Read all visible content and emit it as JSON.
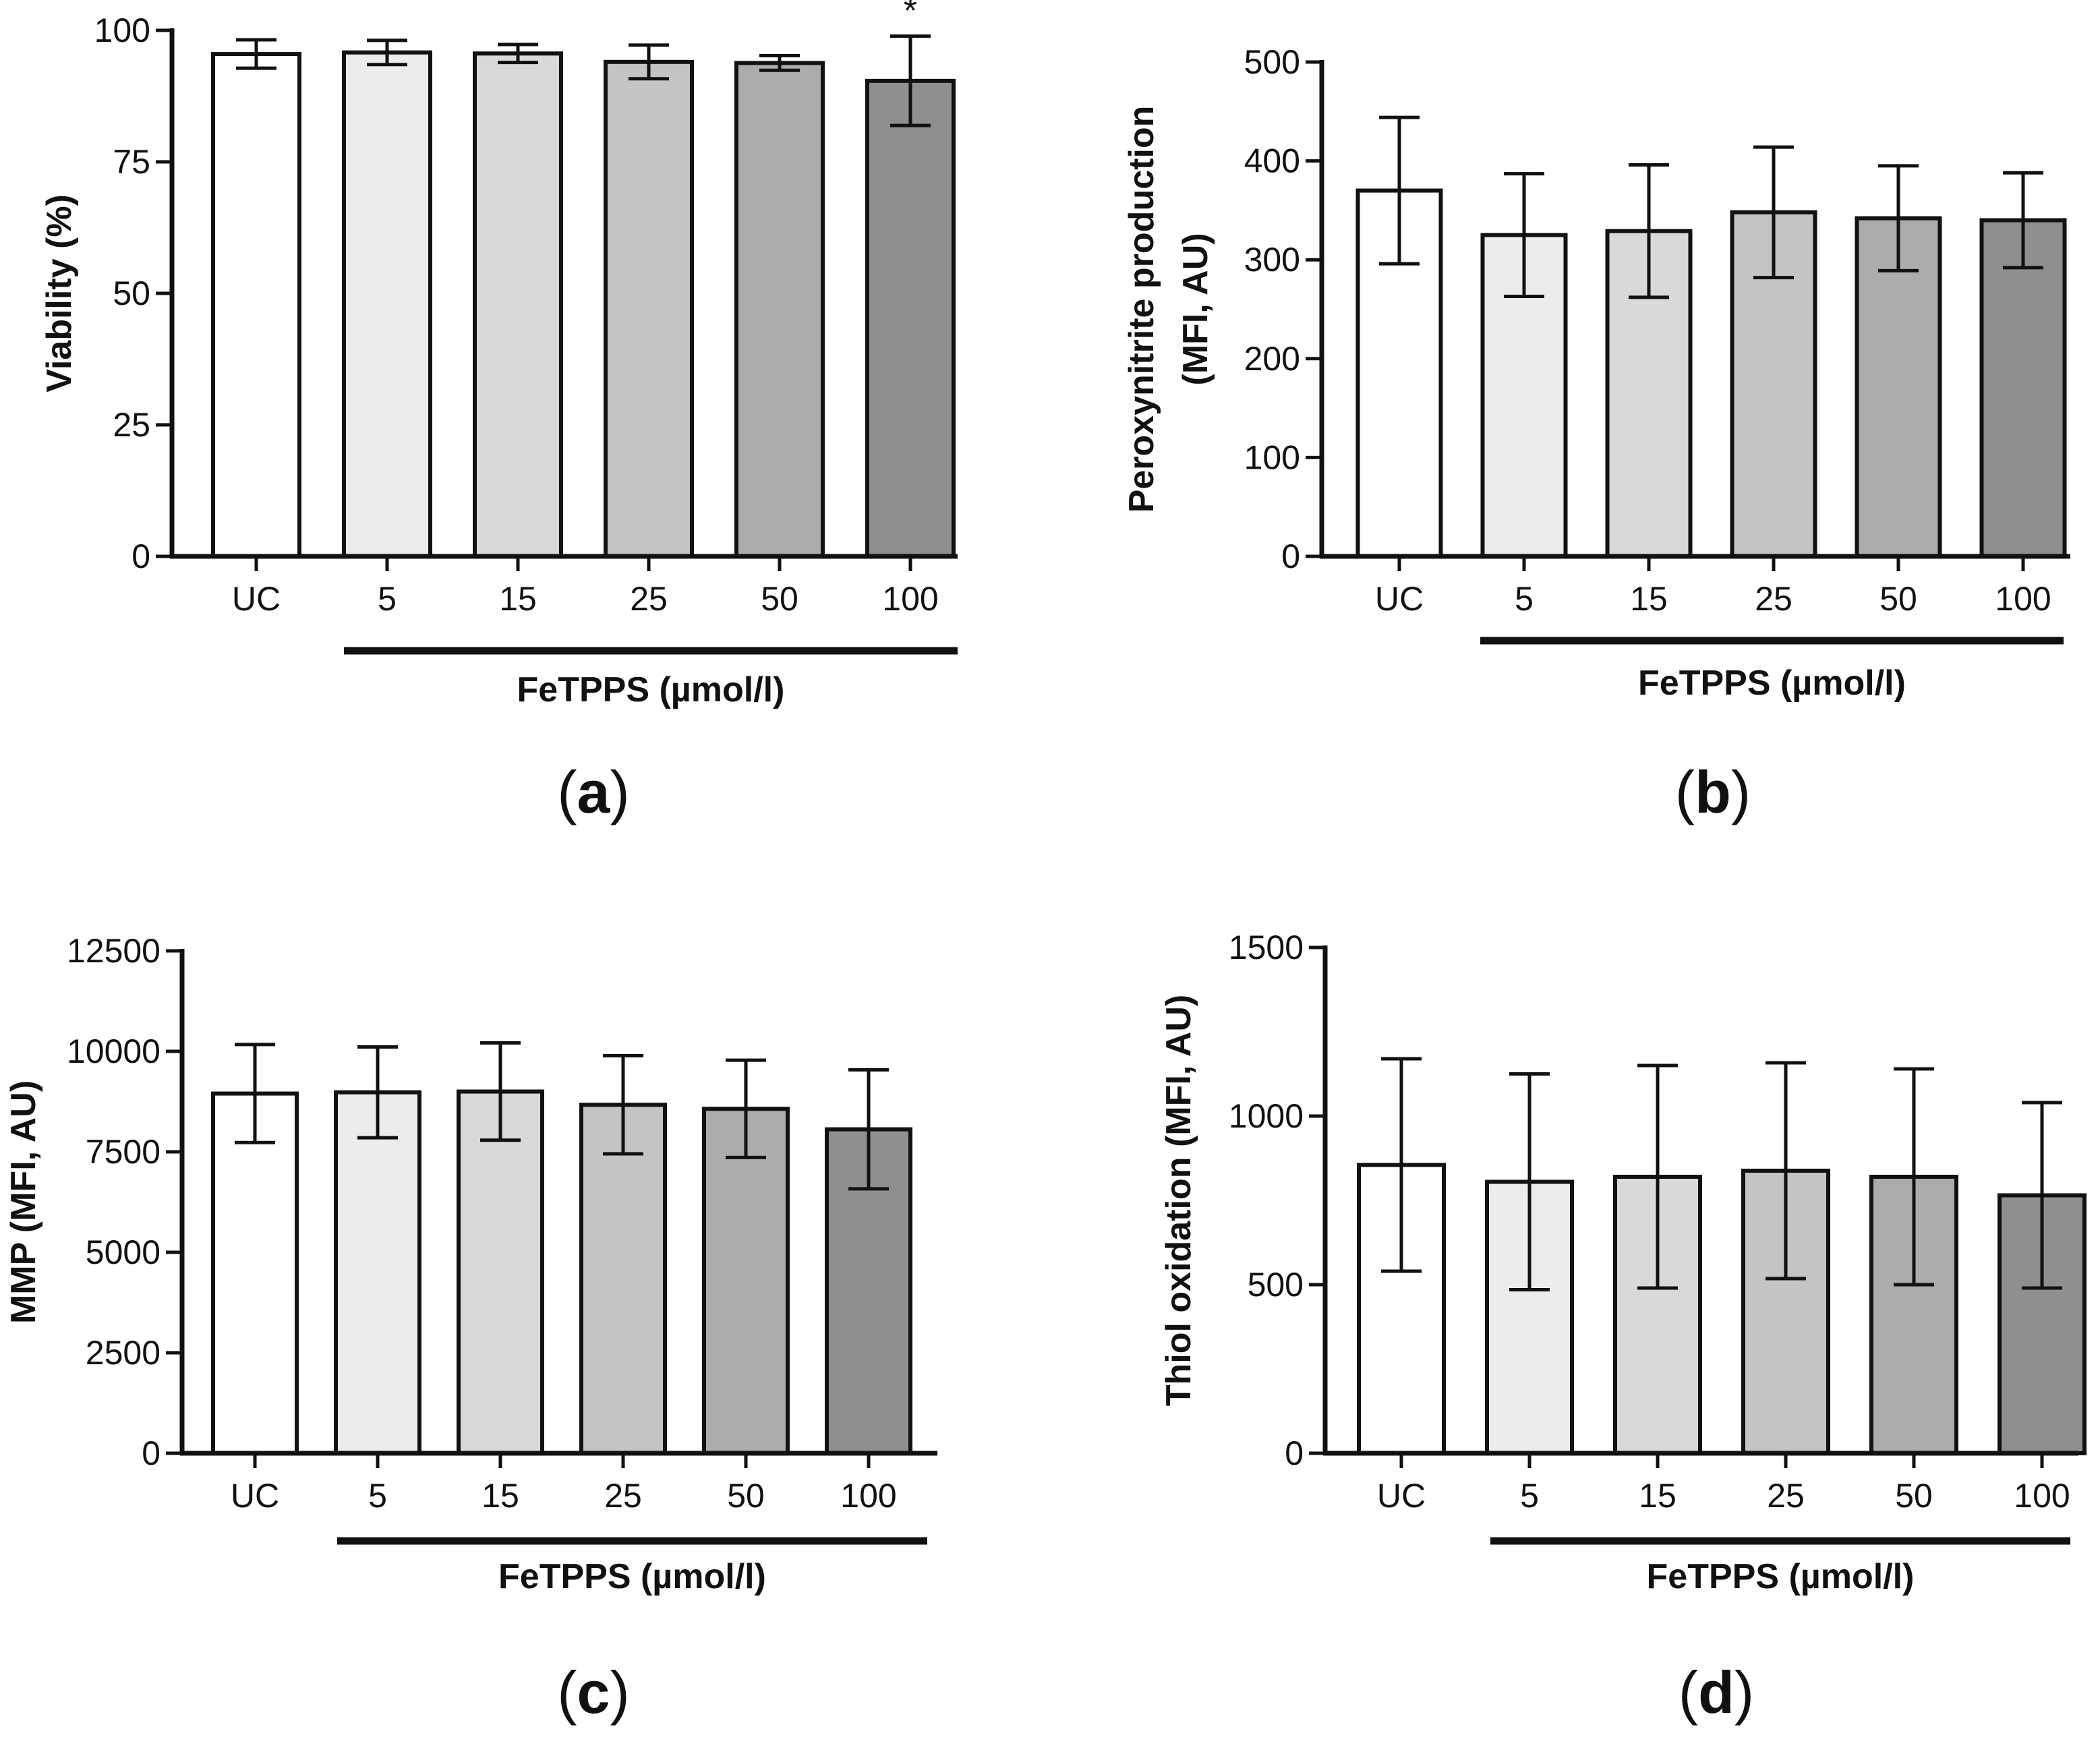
{
  "colors": {
    "bars": [
      "#ffffff",
      "#ececec",
      "#d9d9d9",
      "#c4c4c4",
      "#acacac",
      "#8f8f8f"
    ],
    "stroke": "#111111"
  },
  "chart_data": [
    {
      "panel": "a",
      "panel_label": "a",
      "type": "bar",
      "categories": [
        "UC",
        "5",
        "15",
        "25",
        "50",
        "100"
      ],
      "values": [
        95.5,
        95.8,
        95.6,
        94.0,
        93.8,
        90.4
      ],
      "errors": [
        2.7,
        2.3,
        1.7,
        3.2,
        1.4,
        8.5
      ],
      "ylabel": "Viability (%)",
      "group_label": "FeTPPS (µmol/l)",
      "ylim": [
        0,
        100
      ],
      "yticks": [
        0,
        25,
        50,
        75,
        100
      ],
      "annotations": [
        {
          "category": "100",
          "text": "*"
        }
      ]
    },
    {
      "panel": "b",
      "panel_label": "b",
      "type": "bar",
      "categories": [
        "UC",
        "5",
        "15",
        "25",
        "50",
        "100"
      ],
      "values": [
        370,
        325,
        329,
        348,
        342,
        340
      ],
      "errors": [
        74,
        62,
        67,
        66,
        53,
        48
      ],
      "ylabel": "Peroxynitrite production (MFI, AU)",
      "ylabel_lines": [
        "Peroxynitrite production",
        "(MFI, AU)"
      ],
      "group_label": "FeTPPS (µmol/l)",
      "ylim": [
        0,
        500
      ],
      "yticks": [
        0,
        100,
        200,
        300,
        400,
        500
      ],
      "annotations": []
    },
    {
      "panel": "c",
      "panel_label": "c",
      "type": "bar",
      "categories": [
        "UC",
        "5",
        "15",
        "25",
        "50",
        "100"
      ],
      "values": [
        8950,
        8980,
        9000,
        8670,
        8570,
        8060
      ],
      "errors": [
        1220,
        1130,
        1210,
        1220,
        1210,
        1480
      ],
      "ylabel": "MMP (MFI, AU)",
      "group_label": "FeTPPS (µmol/l)",
      "ylim": [
        0,
        12500
      ],
      "yticks": [
        0,
        2500,
        5000,
        7500,
        10000,
        12500
      ],
      "annotations": []
    },
    {
      "panel": "d",
      "panel_label": "d",
      "type": "bar",
      "categories": [
        "UC",
        "5",
        "15",
        "25",
        "50",
        "100"
      ],
      "values": [
        855,
        805,
        820,
        838,
        820,
        765
      ],
      "errors": [
        315,
        320,
        330,
        320,
        320,
        275
      ],
      "ylabel": "Thiol oxidation (MFI, AU)",
      "group_label": "FeTPPS (µmol/l)",
      "ylim": [
        0,
        1500
      ],
      "yticks": [
        0,
        500,
        1000,
        1500
      ],
      "annotations": []
    }
  ]
}
